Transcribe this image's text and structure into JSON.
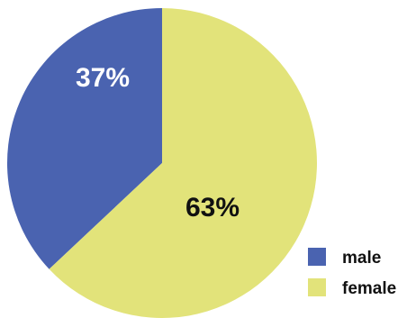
{
  "chart_data": {
    "type": "pie",
    "title": "",
    "slices": [
      {
        "label": "male",
        "value": 37,
        "display": "37%",
        "color": "#4a63b0",
        "label_color": "#ffffff"
      },
      {
        "label": "female",
        "value": 63,
        "display": "63%",
        "color": "#e2e37a",
        "label_color": "#111111"
      }
    ],
    "legend": {
      "position": "bottom-right",
      "entries": [
        "male",
        "female"
      ]
    }
  }
}
